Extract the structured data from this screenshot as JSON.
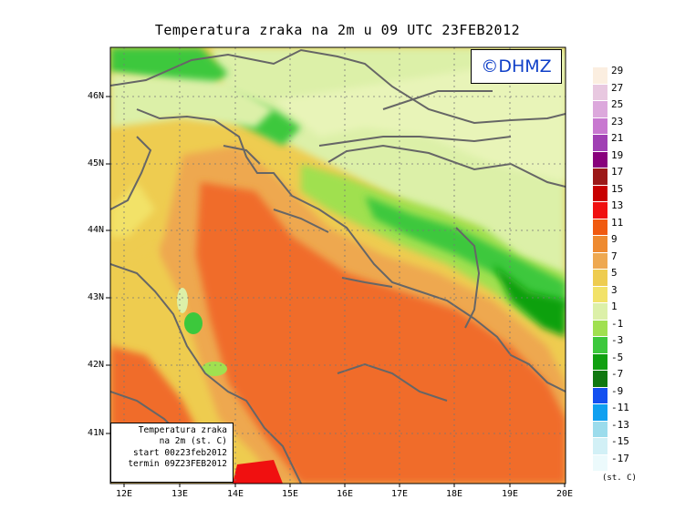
{
  "title": "Temperatura zraka na 2m u 09 UTC 23FEB2012",
  "logo": "©DHMZ",
  "info_box": {
    "line1": "Temperatura zraka",
    "line2": "na 2m (st. C)",
    "line3": "start 00z23feb2012",
    "line4": "termin 09Z23FEB2012"
  },
  "map": {
    "lon_ticks": [
      "12E",
      "13E",
      "14E",
      "15E",
      "16E",
      "17E",
      "18E",
      "19E",
      "20E"
    ],
    "lat_ticks": [
      "46N",
      "45N",
      "44N",
      "43N",
      "42N",
      "41N"
    ],
    "lon_range": [
      11.8,
      20.0
    ],
    "lat_range": [
      40.2,
      46.8
    ],
    "gridlines": true
  },
  "legend": {
    "units": "(st. C)",
    "labels": [
      "29",
      "27",
      "25",
      "23",
      "21",
      "19",
      "17",
      "15",
      "13",
      "11",
      "9",
      "7",
      "5",
      "3",
      "1",
      "-1",
      "-3",
      "-5",
      "-7",
      "-9",
      "-11",
      "-13",
      "-15",
      "-17"
    ],
    "colors": [
      "#fbeee0",
      "#e8c8e0",
      "#dca8dc",
      "#c878d0",
      "#a040b4",
      "#88007c",
      "#9c1818",
      "#c80000",
      "#f01010",
      "#f05a10",
      "#ee8a30",
      "#eea850",
      "#eecc50",
      "#f2e268",
      "#dcf0a8",
      "#a0e050",
      "#3cc83c",
      "#10a010",
      "#107810",
      "#1450f0",
      "#10a0f0",
      "#9cdcec",
      "#d2f0f6",
      "#ecfafc"
    ]
  },
  "colors": {
    "sea_warm": "#f06c2a",
    "coast_band": "#eea850",
    "interior": "#9ad850",
    "mountains": "#20b020",
    "coastline": "#555555"
  }
}
